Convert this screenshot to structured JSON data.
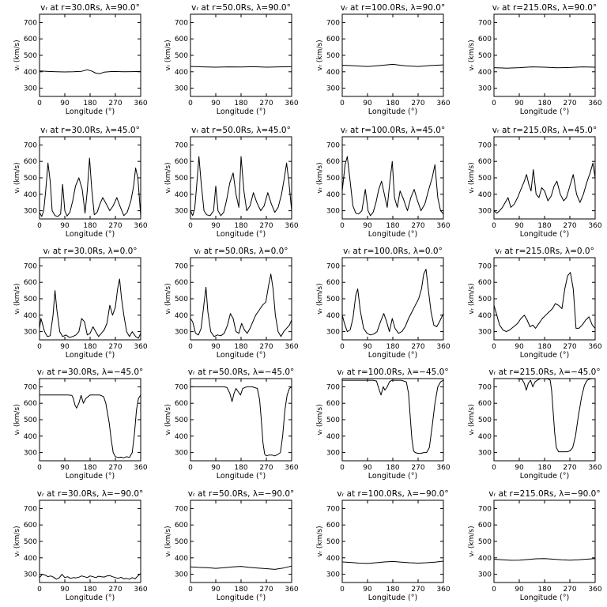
{
  "layout": {
    "rows": 5,
    "cols": 4
  },
  "axis": {
    "xlabel": "Longitude (°)",
    "ylabel": "vᵣ (km/s)",
    "xticks": [
      0,
      90,
      180,
      270,
      360
    ],
    "yticks": [
      300,
      400,
      500,
      600,
      700
    ],
    "xlim": [
      0,
      360
    ],
    "ylim": [
      250,
      750
    ]
  },
  "chart_data": [
    {
      "type": "line",
      "title": "vᵣ at r=30.0Rs, λ=90.0°",
      "x": [
        0,
        30,
        60,
        90,
        120,
        150,
        170,
        185,
        200,
        215,
        230,
        260,
        300,
        330,
        360
      ],
      "y": [
        405,
        402,
        400,
        399,
        400,
        403,
        412,
        405,
        392,
        388,
        398,
        402,
        400,
        401,
        402
      ]
    },
    {
      "type": "line",
      "title": "vᵣ at r=50.0Rs, λ=90.0°",
      "x": [
        0,
        45,
        90,
        135,
        180,
        225,
        270,
        315,
        360
      ],
      "y": [
        432,
        430,
        428,
        430,
        429,
        431,
        428,
        430,
        431
      ]
    },
    {
      "type": "line",
      "title": "vᵣ at r=100.0Rs, λ=90.0°",
      "x": [
        0,
        45,
        90,
        135,
        180,
        225,
        270,
        315,
        360
      ],
      "y": [
        440,
        436,
        432,
        438,
        445,
        436,
        432,
        438,
        442
      ]
    },
    {
      "type": "line",
      "title": "vᵣ at r=215.0Rs, λ=90.0°",
      "x": [
        0,
        45,
        90,
        135,
        180,
        225,
        270,
        315,
        360
      ],
      "y": [
        425,
        422,
        425,
        430,
        428,
        424,
        426,
        430,
        428
      ]
    },
    {
      "type": "line",
      "title": "vᵣ at r=30.0Rs, λ=45.0°",
      "x": [
        0,
        8,
        15,
        22,
        30,
        38,
        45,
        55,
        65,
        75,
        82,
        90,
        98,
        108,
        118,
        128,
        140,
        152,
        162,
        170,
        178,
        186,
        195,
        205,
        215,
        225,
        238,
        250,
        262,
        275,
        288,
        300,
        312,
        325,
        335,
        342,
        350,
        360
      ],
      "y": [
        290,
        265,
        300,
        420,
        590,
        480,
        300,
        270,
        265,
        280,
        460,
        300,
        268,
        290,
        360,
        450,
        500,
        430,
        285,
        420,
        620,
        430,
        275,
        290,
        340,
        380,
        340,
        300,
        330,
        380,
        320,
        270,
        290,
        360,
        450,
        560,
        500,
        270
      ]
    },
    {
      "type": "line",
      "title": "vᵣ at r=50.0Rs, λ=45.0°",
      "x": [
        0,
        8,
        15,
        22,
        30,
        38,
        48,
        58,
        70,
        82,
        90,
        98,
        108,
        118,
        128,
        140,
        152,
        162,
        172,
        180,
        190,
        200,
        212,
        224,
        236,
        250,
        262,
        275,
        288,
        300,
        312,
        324,
        334,
        342,
        350,
        360
      ],
      "y": [
        300,
        270,
        310,
        450,
        630,
        470,
        300,
        275,
        270,
        300,
        450,
        300,
        270,
        290,
        360,
        470,
        530,
        400,
        320,
        630,
        420,
        300,
        330,
        410,
        350,
        300,
        330,
        410,
        340,
        290,
        320,
        400,
        500,
        590,
        480,
        300
      ]
    },
    {
      "type": "line",
      "title": "vᵣ at r=100.0Rs, λ=45.0°",
      "x": [
        0,
        10,
        18,
        28,
        38,
        48,
        58,
        70,
        82,
        92,
        100,
        110,
        120,
        130,
        140,
        150,
        160,
        170,
        178,
        186,
        196,
        206,
        218,
        232,
        244,
        256,
        268,
        280,
        294,
        308,
        320,
        330,
        340,
        350,
        360
      ],
      "y": [
        420,
        580,
        630,
        480,
        330,
        285,
        280,
        300,
        430,
        300,
        270,
        290,
        350,
        430,
        480,
        400,
        320,
        480,
        600,
        380,
        320,
        420,
        370,
        300,
        380,
        430,
        360,
        300,
        340,
        430,
        500,
        580,
        380,
        300,
        280
      ]
    },
    {
      "type": "line",
      "title": "vᵣ at r=215.0Rs, λ=45.0°",
      "x": [
        0,
        10,
        20,
        30,
        40,
        50,
        60,
        72,
        84,
        96,
        108,
        116,
        124,
        132,
        140,
        150,
        160,
        170,
        180,
        192,
        204,
        214,
        224,
        236,
        248,
        258,
        270,
        282,
        294,
        306,
        318,
        330,
        342,
        352,
        360
      ],
      "y": [
        300,
        285,
        300,
        320,
        350,
        380,
        320,
        340,
        380,
        430,
        480,
        520,
        460,
        420,
        550,
        400,
        380,
        440,
        420,
        360,
        390,
        450,
        480,
        400,
        360,
        380,
        450,
        520,
        400,
        350,
        400,
        470,
        530,
        590,
        500
      ]
    },
    {
      "type": "line",
      "title": "vᵣ at r=30.0Rs, λ=0.0°",
      "x": [
        0,
        5,
        10,
        18,
        28,
        38,
        48,
        55,
        62,
        72,
        82,
        94,
        106,
        118,
        130,
        140,
        150,
        160,
        170,
        180,
        190,
        200,
        210,
        220,
        230,
        240,
        250,
        260,
        270,
        278,
        285,
        292,
        300,
        310,
        320,
        330,
        342,
        352,
        360
      ],
      "y": [
        320,
        380,
        350,
        300,
        270,
        275,
        400,
        550,
        430,
        300,
        270,
        280,
        265,
        270,
        280,
        300,
        380,
        360,
        280,
        290,
        330,
        300,
        270,
        290,
        310,
        350,
        460,
        400,
        450,
        560,
        620,
        500,
        400,
        300,
        270,
        300,
        270,
        260,
        290
      ]
    },
    {
      "type": "line",
      "title": "vᵣ at r=50.0Rs, λ=0.0°",
      "x": [
        0,
        8,
        18,
        28,
        38,
        48,
        55,
        62,
        72,
        84,
        96,
        108,
        120,
        132,
        142,
        152,
        162,
        172,
        182,
        192,
        202,
        212,
        222,
        232,
        244,
        256,
        268,
        278,
        286,
        294,
        302,
        312,
        322,
        332,
        342,
        352,
        360
      ],
      "y": [
        380,
        360,
        290,
        280,
        320,
        470,
        570,
        420,
        300,
        270,
        280,
        275,
        290,
        340,
        410,
        380,
        300,
        290,
        350,
        310,
        290,
        320,
        360,
        400,
        430,
        460,
        480,
        580,
        650,
        560,
        400,
        300,
        270,
        300,
        320,
        340,
        370
      ]
    },
    {
      "type": "line",
      "title": "vᵣ at r=100.0Rs, λ=0.0°",
      "x": [
        0,
        8,
        18,
        28,
        38,
        48,
        55,
        64,
        76,
        88,
        100,
        112,
        124,
        136,
        148,
        158,
        168,
        178,
        188,
        200,
        212,
        224,
        236,
        248,
        260,
        272,
        282,
        290,
        298,
        306,
        316,
        326,
        336,
        346,
        360
      ],
      "y": [
        400,
        350,
        300,
        310,
        380,
        520,
        560,
        430,
        320,
        290,
        280,
        285,
        300,
        360,
        410,
        360,
        300,
        380,
        320,
        290,
        300,
        330,
        380,
        420,
        460,
        500,
        560,
        650,
        680,
        560,
        420,
        340,
        330,
        360,
        410
      ]
    },
    {
      "type": "line",
      "title": "vᵣ at r=215.0Rs, λ=0.0°",
      "x": [
        0,
        10,
        20,
        32,
        44,
        56,
        70,
        84,
        96,
        108,
        118,
        128,
        138,
        148,
        160,
        172,
        184,
        196,
        208,
        218,
        230,
        242,
        252,
        262,
        272,
        282,
        292,
        302,
        314,
        326,
        338,
        350,
        360
      ],
      "y": [
        460,
        400,
        340,
        310,
        300,
        310,
        330,
        350,
        380,
        400,
        370,
        330,
        340,
        320,
        350,
        380,
        400,
        420,
        440,
        470,
        460,
        440,
        560,
        640,
        660,
        560,
        320,
        320,
        340,
        370,
        390,
        340,
        320
      ]
    },
    {
      "type": "line",
      "title": "vᵣ at r=30.0Rs, λ=−45.0°",
      "x": [
        0,
        30,
        60,
        100,
        115,
        120,
        126,
        132,
        140,
        148,
        156,
        165,
        180,
        200,
        215,
        228,
        236,
        240,
        248,
        255,
        262,
        270,
        280,
        290,
        300,
        310,
        320,
        330,
        338,
        345,
        352,
        360
      ],
      "y": [
        650,
        650,
        650,
        650,
        648,
        630,
        590,
        570,
        600,
        648,
        600,
        630,
        650,
        650,
        650,
        640,
        600,
        560,
        480,
        380,
        300,
        275,
        270,
        272,
        268,
        275,
        270,
        300,
        420,
        560,
        630,
        650
      ]
    },
    {
      "type": "line",
      "title": "vᵣ at r=50.0Rs, λ=−45.0°",
      "x": [
        0,
        40,
        80,
        120,
        130,
        140,
        148,
        155,
        162,
        170,
        178,
        186,
        200,
        220,
        238,
        246,
        252,
        258,
        264,
        270,
        280,
        290,
        300,
        310,
        320,
        328,
        336,
        344,
        352,
        360
      ],
      "y": [
        700,
        700,
        700,
        700,
        695,
        660,
        610,
        660,
        690,
        670,
        650,
        690,
        700,
        700,
        690,
        620,
        500,
        360,
        290,
        280,
        285,
        285,
        280,
        288,
        300,
        400,
        560,
        650,
        690,
        700
      ]
    },
    {
      "type": "line",
      "title": "vᵣ at r=100.0Rs, λ=−45.0°",
      "x": [
        0,
        40,
        80,
        110,
        122,
        130,
        138,
        146,
        152,
        160,
        168,
        176,
        190,
        210,
        228,
        236,
        242,
        248,
        254,
        260,
        270,
        280,
        290,
        300,
        310,
        320,
        330,
        340,
        350,
        360
      ],
      "y": [
        740,
        740,
        740,
        740,
        735,
        690,
        650,
        700,
        680,
        700,
        730,
        740,
        740,
        740,
        730,
        660,
        520,
        380,
        310,
        300,
        295,
        295,
        300,
        300,
        330,
        460,
        600,
        700,
        730,
        740
      ]
    },
    {
      "type": "line",
      "title": "vᵣ at r=215.0Rs, λ=−45.0°",
      "x": [
        0,
        40,
        80,
        100,
        108,
        115,
        122,
        130,
        138,
        146,
        154,
        165,
        180,
        192,
        200,
        205,
        210,
        216,
        222,
        230,
        240,
        250,
        260,
        270,
        280,
        290,
        300,
        312,
        322,
        332,
        342,
        352,
        360
      ],
      "y": [
        750,
        750,
        750,
        745,
        720,
        680,
        720,
        740,
        700,
        730,
        740,
        750,
        750,
        748,
        740,
        680,
        560,
        420,
        330,
        305,
        305,
        305,
        305,
        310,
        330,
        400,
        520,
        640,
        710,
        740,
        748,
        750,
        750
      ]
    },
    {
      "type": "line",
      "title": "vᵣ at r=30.0Rs, λ=−90.0°",
      "x": [
        0,
        10,
        20,
        30,
        40,
        50,
        60,
        70,
        80,
        90,
        100,
        110,
        120,
        130,
        140,
        150,
        160,
        170,
        180,
        190,
        200,
        210,
        220,
        230,
        240,
        250,
        260,
        270,
        280,
        290,
        300,
        310,
        320,
        330,
        340,
        350,
        360
      ],
      "y": [
        280,
        300,
        295,
        285,
        290,
        282,
        270,
        278,
        300,
        280,
        285,
        275,
        280,
        278,
        282,
        290,
        285,
        280,
        290,
        285,
        280,
        288,
        285,
        283,
        290,
        292,
        285,
        280,
        275,
        282,
        272,
        275,
        270,
        280,
        272,
        290,
        305
      ]
    },
    {
      "type": "line",
      "title": "vᵣ at r=50.0Rs, λ=−90.0°",
      "x": [
        0,
        30,
        60,
        90,
        120,
        150,
        180,
        210,
        240,
        270,
        300,
        330,
        360
      ],
      "y": [
        345,
        342,
        340,
        336,
        340,
        345,
        348,
        342,
        338,
        334,
        330,
        338,
        350
      ]
    },
    {
      "type": "line",
      "title": "vᵣ at r=100.0Rs, λ=−90.0°",
      "x": [
        0,
        30,
        60,
        90,
        120,
        150,
        180,
        210,
        240,
        270,
        300,
        330,
        360
      ],
      "y": [
        375,
        372,
        368,
        366,
        370,
        375,
        378,
        374,
        370,
        368,
        370,
        374,
        380
      ]
    },
    {
      "type": "line",
      "title": "vᵣ at r=215.0Rs, λ=−90.0°",
      "x": [
        0,
        30,
        60,
        90,
        120,
        150,
        180,
        210,
        240,
        270,
        300,
        330,
        360
      ],
      "y": [
        392,
        388,
        385,
        386,
        390,
        394,
        395,
        392,
        388,
        386,
        388,
        392,
        395
      ]
    }
  ]
}
